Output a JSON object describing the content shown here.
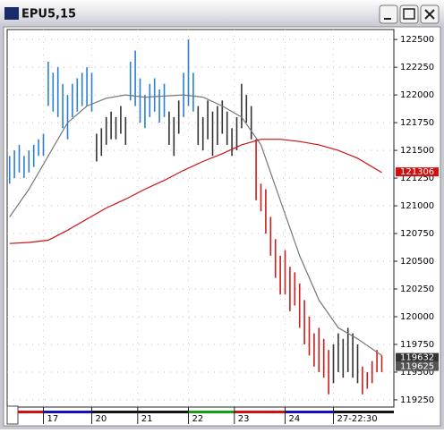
{
  "chart_data": {
    "type": "ohlc",
    "title": "EPU5,15",
    "xlim": [
      0,
      80
    ],
    "ylim": [
      119185,
      122590
    ],
    "yticks": [
      122500,
      122250,
      122000,
      121750,
      121500,
      121250,
      121000,
      120750,
      120500,
      120250,
      120000,
      119750,
      119500,
      119250
    ],
    "xticks": [
      {
        "value": 7.5,
        "label": "17"
      },
      {
        "value": 17.5,
        "label": "20"
      },
      {
        "value": 27,
        "label": "21"
      },
      {
        "value": 37.5,
        "label": "22"
      },
      {
        "value": 47,
        "label": "23"
      },
      {
        "value": 57.5,
        "label": "24"
      },
      {
        "value": 67.5,
        "label": "27-22:30"
      }
    ],
    "grid": true,
    "palette": {
      "b": "#2a7fd4",
      "k": "#333333",
      "r": "#c81e1e"
    },
    "bars": {
      "high": [
        121450,
        121500,
        121550,
        121450,
        121500,
        121550,
        121600,
        121650,
        122300,
        122200,
        122250,
        122100,
        122000,
        122100,
        122150,
        122200,
        122250,
        122200,
        121650,
        121700,
        121800,
        121850,
        121800,
        121900,
        121800,
        122300,
        122400,
        122150,
        122000,
        122100,
        122150,
        122050,
        122100,
        121850,
        121800,
        121950,
        122200,
        122500,
        122200,
        121900,
        121800,
        121950,
        121850,
        121900,
        121950,
        121850,
        121700,
        121800,
        122100,
        122000,
        121900,
        121600,
        121200,
        121150,
        120900,
        120700,
        120550,
        120600,
        120450,
        120400,
        120300,
        120150,
        120000,
        119850,
        119900,
        119800,
        119700,
        119750,
        119850,
        119800,
        119900,
        119850,
        119750,
        119550,
        119500,
        119600,
        119700,
        119650
      ],
      "low": [
        121200,
        121250,
        121300,
        121250,
        121300,
        121350,
        121450,
        121450,
        121900,
        121850,
        121800,
        121700,
        121600,
        121800,
        121850,
        121900,
        121900,
        121850,
        121400,
        121450,
        121550,
        121600,
        121600,
        121650,
        121550,
        121950,
        121900,
        121750,
        121700,
        121800,
        121850,
        121750,
        121800,
        121550,
        121450,
        121650,
        121800,
        121900,
        121850,
        121550,
        121500,
        121600,
        121450,
        121550,
        121650,
        121550,
        121450,
        121500,
        121700,
        121750,
        121600,
        121050,
        120950,
        120750,
        120550,
        120350,
        120200,
        120200,
        120050,
        120100,
        119900,
        119750,
        119650,
        119550,
        119500,
        119450,
        119300,
        119400,
        119500,
        119450,
        119500,
        119450,
        119400,
        119300,
        119350,
        119400,
        119500,
        119500
      ],
      "colors": [
        "b",
        "b",
        "b",
        "b",
        "b",
        "b",
        "b",
        "b",
        "b",
        "b",
        "b",
        "b",
        "b",
        "b",
        "b",
        "b",
        "b",
        "b",
        "k",
        "k",
        "k",
        "k",
        "k",
        "k",
        "k",
        "b",
        "b",
        "b",
        "b",
        "b",
        "b",
        "b",
        "b",
        "k",
        "k",
        "k",
        "b",
        "b",
        "b",
        "k",
        "k",
        "k",
        "k",
        "k",
        "k",
        "k",
        "k",
        "k",
        "k",
        "k",
        "k",
        "r",
        "r",
        "r",
        "r",
        "r",
        "r",
        "r",
        "r",
        "r",
        "r",
        "r",
        "r",
        "r",
        "r",
        "r",
        "r",
        "k",
        "k",
        "k",
        "k",
        "k",
        "k",
        "r",
        "r",
        "r",
        "r",
        "r"
      ]
    },
    "lines": [
      {
        "color": "#777777",
        "x": [
          0,
          4,
          8,
          12,
          16,
          20,
          24,
          28,
          32,
          36,
          40,
          44,
          48,
          52,
          56,
          60,
          64,
          68,
          72,
          77
        ],
        "values": [
          120900,
          121150,
          121450,
          121750,
          121900,
          121970,
          122000,
          121980,
          121990,
          122000,
          121980,
          121900,
          121800,
          121550,
          121050,
          120550,
          120150,
          119900,
          119800,
          119650
        ]
      },
      {
        "color": "#cc1111",
        "x": [
          0,
          4,
          8,
          12,
          16,
          20,
          24,
          28,
          32,
          36,
          40,
          44,
          48,
          52,
          56,
          60,
          64,
          68,
          72,
          77
        ],
        "values": [
          120660,
          120670,
          120690,
          120780,
          120880,
          120980,
          121060,
          121150,
          121230,
          121320,
          121400,
          121470,
          121550,
          121600,
          121600,
          121580,
          121550,
          121500,
          121430,
          121300
        ]
      }
    ],
    "price_markers": [
      {
        "value": 121306,
        "color": "#d01010"
      },
      {
        "value": 119632,
        "color": "#333333"
      },
      {
        "value": 119625,
        "color": "#555555"
      }
    ]
  }
}
